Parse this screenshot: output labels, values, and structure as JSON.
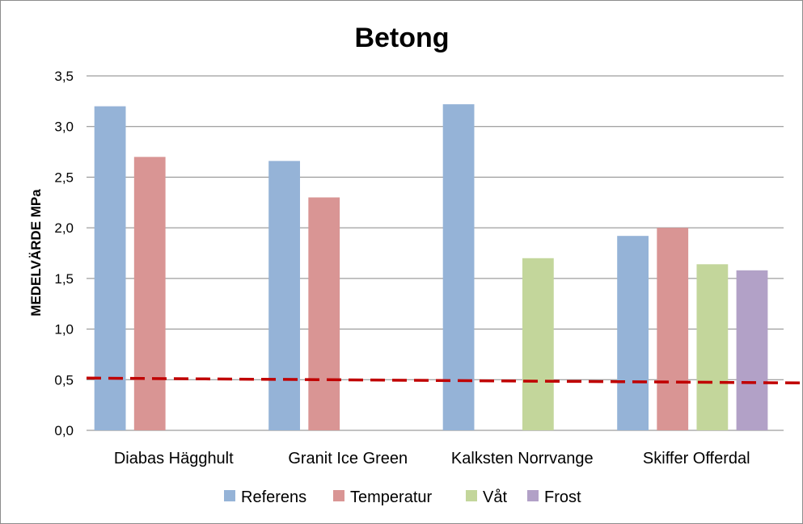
{
  "chart_data": {
    "type": "bar",
    "title": "Betong",
    "xlabel": "",
    "ylabel": "MEDELVÄRDE MPa",
    "ylim": [
      0,
      3.5
    ],
    "yticks": [
      "0,0",
      "0,5",
      "1,0",
      "1,5",
      "2,0",
      "2,5",
      "3,0",
      "3,5"
    ],
    "grid": true,
    "legend_position": "bottom",
    "categories": [
      "Diabas Hägghult",
      "Granit Ice Green",
      "Kalksten Norrvange",
      "Skiffer Offerdal"
    ],
    "series": [
      {
        "name": "Referens",
        "color": "#95b3d7",
        "values": [
          3.2,
          2.66,
          3.22,
          1.92
        ]
      },
      {
        "name": "Temperatur",
        "color": "#d99594",
        "values": [
          2.7,
          2.3,
          null,
          2.0
        ]
      },
      {
        "name": "Våt",
        "color": "#c3d69b",
        "values": [
          null,
          null,
          1.7,
          1.64
        ]
      },
      {
        "name": "Frost",
        "color": "#b2a1c7",
        "values": [
          null,
          null,
          null,
          1.58
        ]
      }
    ],
    "reference_line": {
      "value": 0.5,
      "color": "#c00000",
      "style": "dashed"
    }
  }
}
